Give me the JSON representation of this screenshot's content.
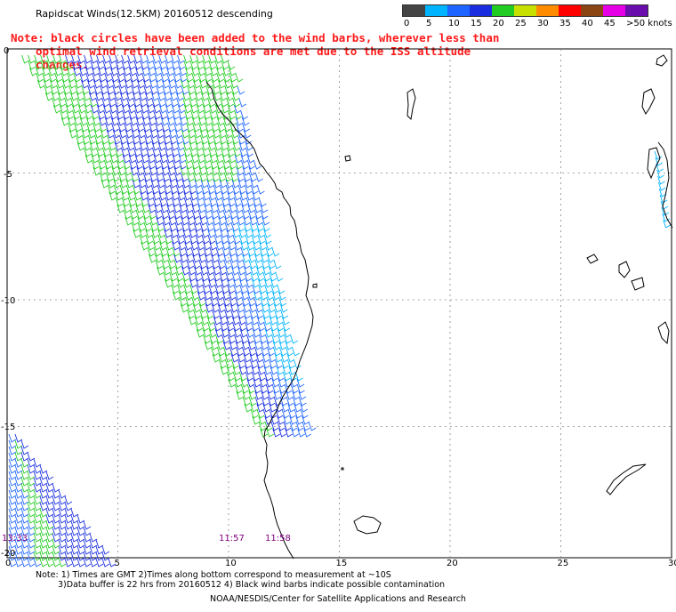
{
  "title": "Rapidscat Winds(12.5KM) 20160512 descending",
  "note": {
    "line1": "Note: black circles have been added to the wind barbs, wherever less than",
    "line2": "optimal wind retrieval conditions are met due to the ISS altitude changes."
  },
  "legend": {
    "labels": [
      "0",
      "5",
      "10",
      "15",
      "20",
      "25",
      "30",
      "35",
      "40",
      "45",
      ">50 knots"
    ],
    "colors": [
      "#444444",
      "#00b4ff",
      "#1e64ff",
      "#1a2ee0",
      "#22cc22",
      "#c8e000",
      "#ff8c00",
      "#ff0000",
      "#8b4513",
      "#e600e6",
      "#6a0dad"
    ]
  },
  "axes": {
    "x_ticks": [
      "0",
      "5",
      "10",
      "15",
      "20",
      "25",
      "30"
    ],
    "y_ticks": [
      "0",
      "-5",
      "-10",
      "-15",
      "-20"
    ]
  },
  "times": [
    "13:33",
    "11:57",
    "11:58"
  ],
  "footer": {
    "line1": "Note: 1) Times are GMT 2)Times along bottom correspond to measurement at ~10S",
    "line2": "3)Data buffer is 22 hrs from 20160512 4) Black wind barbs indicate possible contamination",
    "line3": "NOAA/NESDIS/Center for Satellite Applications and Research"
  }
}
